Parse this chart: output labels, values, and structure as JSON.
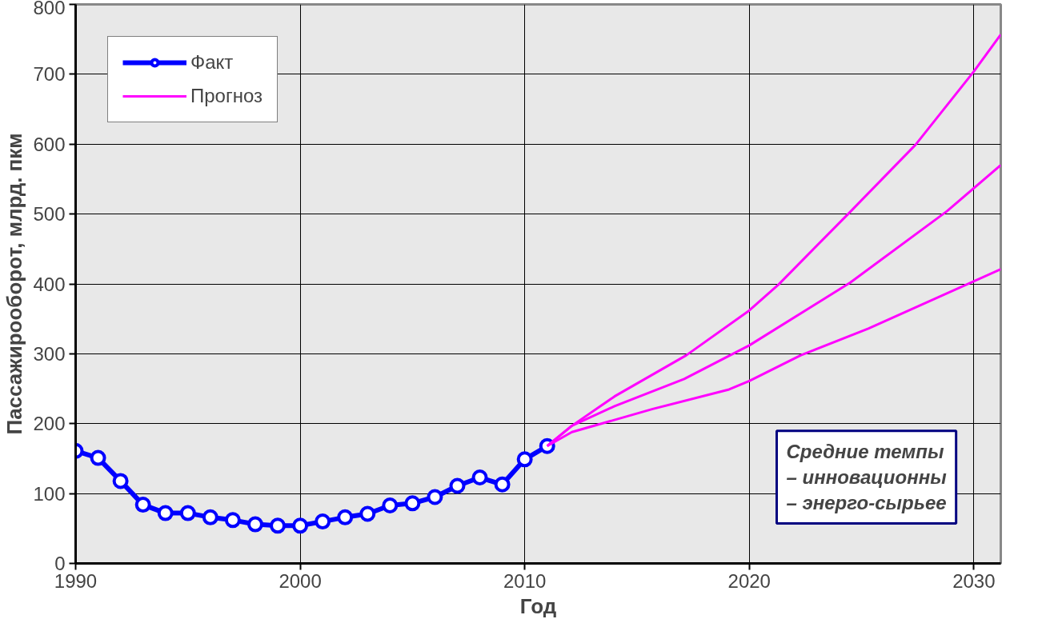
{
  "chart_data": {
    "type": "line",
    "xlabel": "Год",
    "ylabel": "Пассажирооборот, млрд. пкм",
    "xlim": [
      1990,
      2031.2
    ],
    "xticks": [
      1990,
      2000,
      2010,
      2020,
      2030
    ],
    "ylim": [
      0,
      800
    ],
    "yticks": [
      0,
      100,
      200,
      300,
      400,
      500,
      600,
      700,
      800
    ],
    "grid": true,
    "legend": "top left",
    "line_style": "solid",
    "series": [
      {
        "name": "Факт",
        "color": "#0000ff",
        "marker": "circle",
        "x": [
          1990,
          1991,
          1992,
          1993,
          1994,
          1995,
          1996,
          1997,
          1998,
          1999,
          2000,
          2001,
          2002,
          2003,
          2004,
          2005,
          2006,
          2007,
          2008,
          2009,
          2010,
          2011
        ],
        "values": [
          161,
          151,
          118,
          84,
          72,
          72,
          66,
          62,
          56,
          54,
          54,
          60,
          66,
          71,
          83,
          86,
          95,
          111,
          123,
          113,
          149,
          168
        ]
      },
      {
        "name": "Прогноз",
        "color": "#ff00ff",
        "marker": "none",
        "x": [
          2011,
          2012.1,
          2014,
          2017.2,
          2020,
          2021.3,
          2024.4,
          2027.4,
          2030,
          2031.2
        ],
        "values": [
          168,
          197,
          239,
          298,
          362,
          399,
          500,
          599,
          704,
          757
        ]
      },
      {
        "color": "#ff00ff",
        "marker": "none",
        "x": [
          2011,
          2012.1,
          2014,
          2017.1,
          2020,
          2024.5,
          2028.8,
          2031.2
        ],
        "values": [
          168,
          197,
          225,
          264,
          312,
          402,
          504,
          570
        ]
      },
      {
        "color": "#ff00ff",
        "marker": "none",
        "x": [
          2011,
          2012.1,
          2015.7,
          2019.1,
          2020,
          2022.3,
          2025.3,
          2031.2
        ],
        "values": [
          168,
          188,
          221,
          249,
          261,
          298,
          336,
          421
        ]
      }
    ],
    "annotations": [
      "Средние темпы\n– инновационны\n– энерго-сырьее"
    ]
  }
}
